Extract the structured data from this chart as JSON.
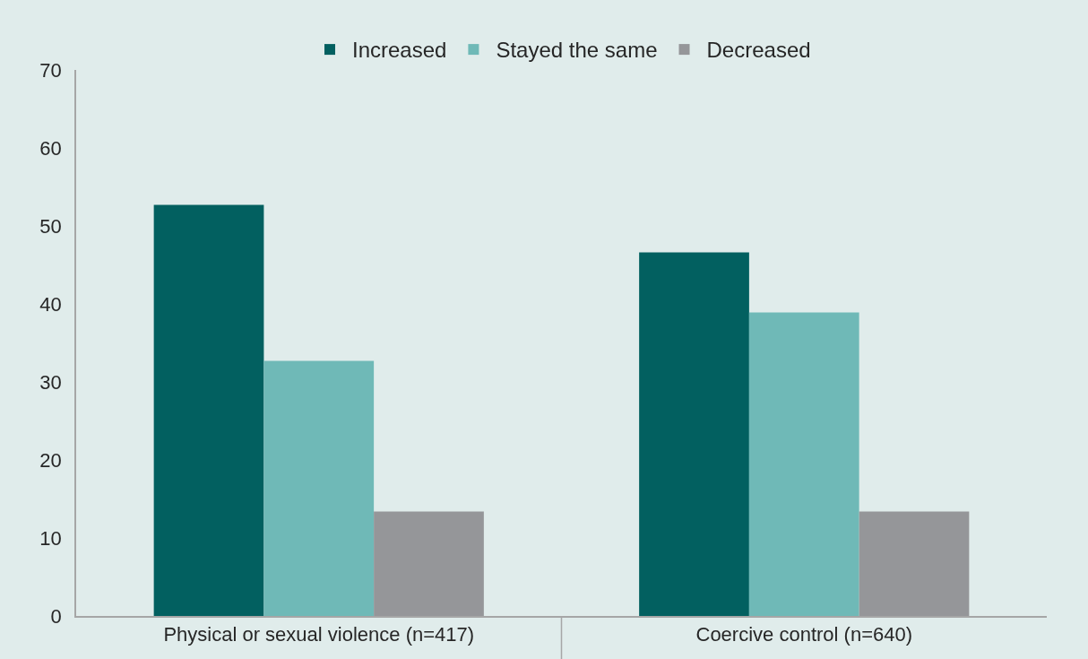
{
  "chart_data": {
    "type": "bar",
    "categories": [
      "Physical or sexual violence (n=417)",
      "Coercive control (n=640)"
    ],
    "series": [
      {
        "name": "Increased",
        "color": "#026060",
        "values": [
          52.7,
          46.6
        ]
      },
      {
        "name": "Stayed the same",
        "color": "#6fb9b7",
        "values": [
          32.7,
          38.9
        ]
      },
      {
        "name": "Decreased",
        "color": "#959699",
        "values": [
          13.4,
          13.4
        ]
      }
    ],
    "ylim": [
      0,
      70
    ],
    "yticks": [
      0,
      10,
      20,
      30,
      40,
      50,
      60,
      70
    ],
    "grid": false,
    "legend": "top"
  }
}
